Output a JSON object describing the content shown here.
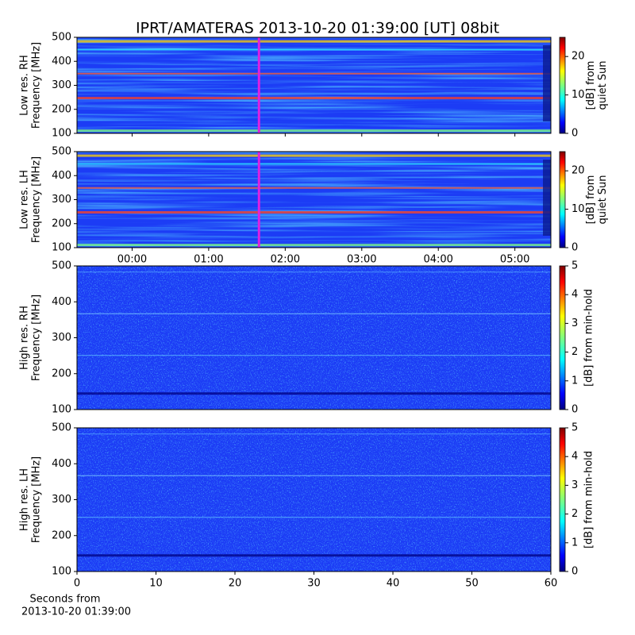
{
  "title": "IPRT/AMATERAS 2013-10-20 01:39:00 [UT]   08bit",
  "chart_data": [
    {
      "type": "spectrogram",
      "ylabel": [
        "Low res. RH",
        "Frequency [MHz]"
      ],
      "ylim": [
        100,
        500
      ],
      "yticks": [
        100,
        200,
        300,
        400,
        500
      ],
      "colorbar_label": [
        "[dB] from",
        "quiet Sun"
      ],
      "clim": [
        0,
        25
      ],
      "cticks": [
        0,
        10,
        20
      ],
      "colormap": "jet"
    },
    {
      "type": "spectrogram",
      "ylabel": [
        "Low res. LH",
        "Frequency [MHz]"
      ],
      "ylim": [
        100,
        500
      ],
      "yticks": [
        100,
        200,
        300,
        400,
        500
      ],
      "xlim": [
        -0.72,
        5.47
      ],
      "xticks": [
        {
          "value": 0,
          "label": "00:00"
        },
        {
          "value": 1,
          "label": "01:00"
        },
        {
          "value": 2,
          "label": "02:00"
        },
        {
          "value": 3,
          "label": "03:00"
        },
        {
          "value": 4,
          "label": "04:00"
        },
        {
          "value": 5,
          "label": "05:00"
        }
      ],
      "colorbar_label": [
        "[dB] from",
        "quiet Sun"
      ],
      "clim": [
        0,
        25
      ],
      "cticks": [
        0,
        10,
        20
      ],
      "colormap": "jet"
    },
    {
      "type": "spectrogram",
      "ylabel": [
        "High res. RH",
        "Frequency [MHz]"
      ],
      "ylim": [
        100,
        500
      ],
      "yticks": [
        100,
        200,
        300,
        400,
        500
      ],
      "colorbar_label": [
        "[dB] from min-hold"
      ],
      "clim": [
        0,
        5
      ],
      "cticks": [
        0,
        1,
        2,
        3,
        4,
        5
      ],
      "colormap": "jet"
    },
    {
      "type": "spectrogram",
      "ylabel": [
        "High res. LH",
        "Frequency [MHz]"
      ],
      "ylim": [
        100,
        500
      ],
      "yticks": [
        100,
        200,
        300,
        400,
        500
      ],
      "xlim": [
        0,
        60
      ],
      "xticks": [
        0,
        10,
        20,
        30,
        40,
        50,
        60
      ],
      "xlabel": [
        "Seconds from",
        "2013-10-20 01:39:00"
      ],
      "colorbar_label": [
        "[dB] from min-hold"
      ],
      "clim": [
        0,
        5
      ],
      "cticks": [
        0,
        1,
        2,
        3,
        4,
        5
      ],
      "colormap": "jet"
    }
  ]
}
